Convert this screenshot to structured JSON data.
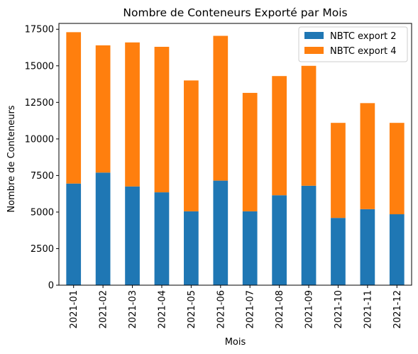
{
  "chart_data": {
    "type": "bar",
    "stacked": true,
    "title": "Nombre de Conteneurs Exporté par Mois",
    "xlabel": "Mois",
    "ylabel": "Nombre de Conteneurs",
    "categories": [
      "2021-01",
      "2021-02",
      "2021-03",
      "2021-04",
      "2021-05",
      "2021-06",
      "2021-07",
      "2021-08",
      "2021-09",
      "2021-10",
      "2021-11",
      "2021-12"
    ],
    "series": [
      {
        "name": "NBTC export 2",
        "color": "#1f77b4",
        "values": [
          6950,
          7700,
          6750,
          6350,
          5050,
          7150,
          5050,
          6150,
          6800,
          4600,
          5200,
          4850
        ]
      },
      {
        "name": "NBTC export 4",
        "color": "#ff7f0e",
        "values": [
          10350,
          8700,
          9850,
          9950,
          8950,
          9900,
          8100,
          8150,
          8200,
          6500,
          7250,
          6250
        ]
      }
    ],
    "ylim": [
      0,
      17500
    ],
    "yticks": [
      0,
      2500,
      5000,
      7500,
      10000,
      12500,
      15000,
      17500
    ],
    "ytick_labels": [
      "0",
      "2500",
      "5000",
      "7500",
      "10000",
      "12500",
      "15000",
      "17500"
    ],
    "grid": false,
    "legend_position": "top-right"
  }
}
